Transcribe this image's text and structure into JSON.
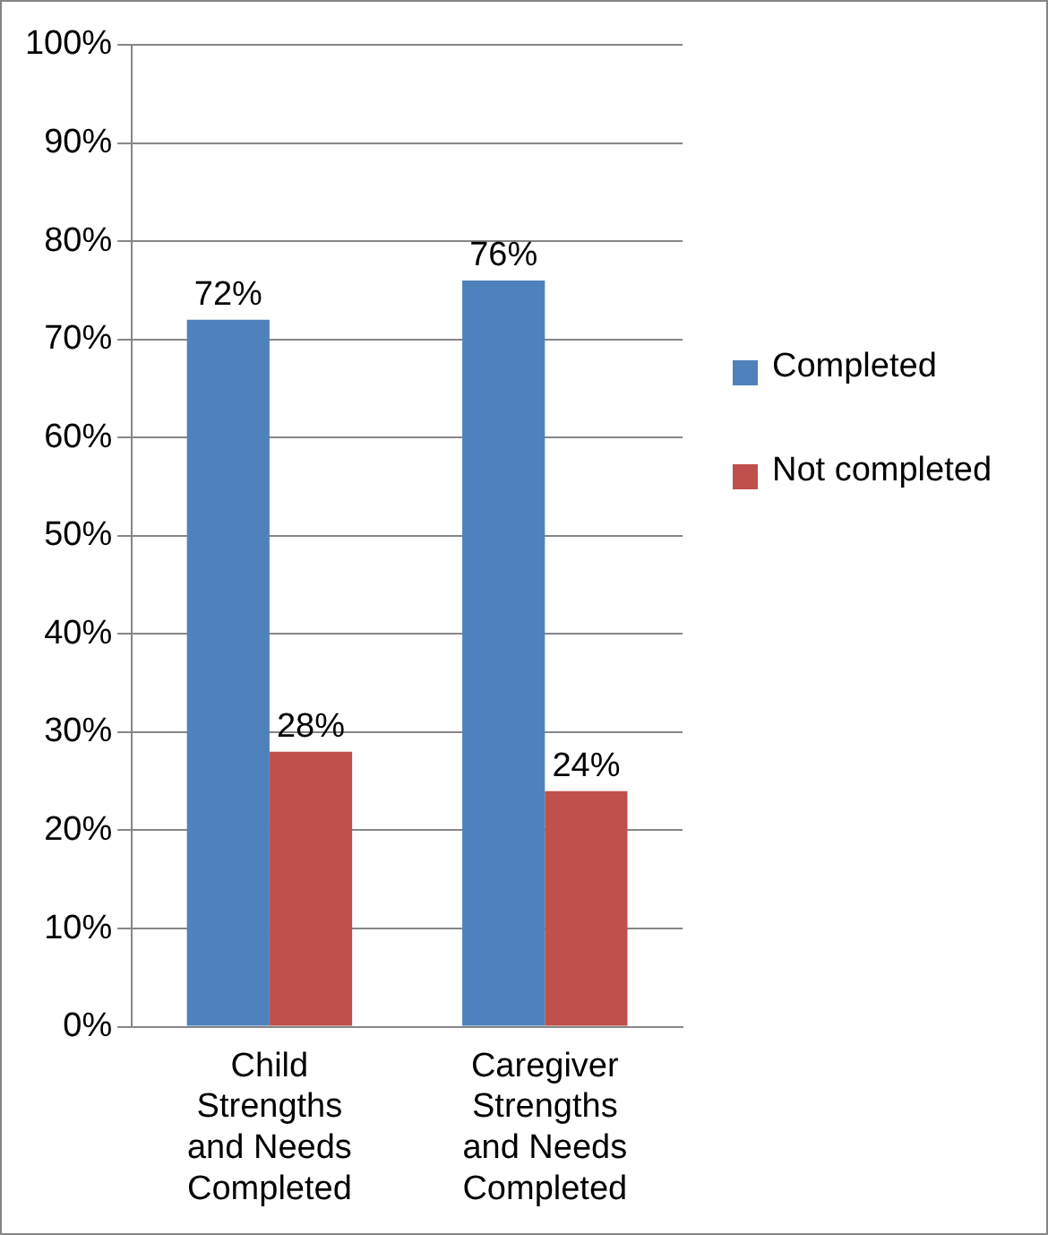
{
  "chart_data": {
    "type": "bar",
    "categories": [
      "Child Strengths and Needs Completed",
      "Caregiver Strengths and Needs Completed"
    ],
    "series": [
      {
        "name": "Completed",
        "color": "#4f81bd",
        "values": [
          72,
          76
        ],
        "value_labels": [
          "72%",
          "76%"
        ]
      },
      {
        "name": "Not completed",
        "color": "#c0504d",
        "values": [
          28,
          24
        ],
        "value_labels": [
          "28%",
          "24%"
        ]
      }
    ],
    "ylim": [
      0,
      100
    ],
    "yticks": [
      {
        "value": 0,
        "label": "0%"
      },
      {
        "value": 10,
        "label": "10%"
      },
      {
        "value": 20,
        "label": "20%"
      },
      {
        "value": 30,
        "label": "30%"
      },
      {
        "value": 40,
        "label": "40%"
      },
      {
        "value": 50,
        "label": "50%"
      },
      {
        "value": 60,
        "label": "60%"
      },
      {
        "value": 70,
        "label": "70%"
      },
      {
        "value": 80,
        "label": "80%"
      },
      {
        "value": 90,
        "label": "90%"
      },
      {
        "value": 100,
        "label": "100%"
      }
    ],
    "grid": "y",
    "legend": "right"
  }
}
